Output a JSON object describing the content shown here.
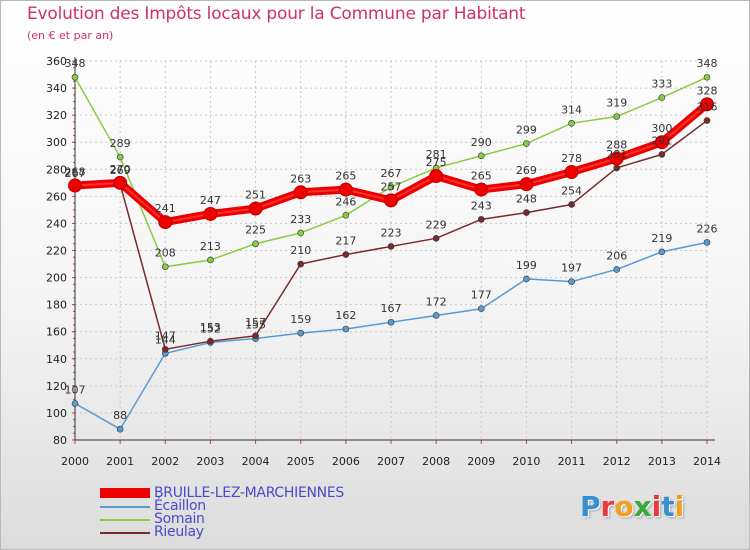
{
  "header": {
    "title": "Evolution des Impôts locaux pour la Commune par Habitant",
    "subtitle": "(en € et par an)"
  },
  "logo": {
    "text": "Proxiti"
  },
  "chart_data": {
    "type": "line",
    "title": "Evolution des Impôts locaux pour la Commune par Habitant",
    "subtitle": "(en € et par an)",
    "xlabel": "",
    "ylabel": "",
    "x": [
      2000,
      2001,
      2002,
      2003,
      2004,
      2005,
      2006,
      2007,
      2008,
      2009,
      2010,
      2011,
      2012,
      2013,
      2014
    ],
    "ylim": [
      80,
      360
    ],
    "yticks": [
      80,
      100,
      120,
      140,
      160,
      180,
      200,
      220,
      240,
      260,
      280,
      300,
      320,
      340,
      360
    ],
    "grid": true,
    "legend": "bottom-left",
    "series": [
      {
        "name": "BRUILLE-LEZ-MARCHIENNES",
        "color": "#ee0000",
        "values": [
          268,
          270,
          241,
          247,
          251,
          263,
          265,
          257,
          275,
          265,
          269,
          278,
          288,
          300,
          328
        ],
        "labels": [
          "268",
          "270",
          "241",
          "247",
          "251",
          "263",
          "265",
          "257",
          "275",
          "265",
          "269",
          "278",
          "288",
          "300",
          "328"
        ],
        "bold": true
      },
      {
        "name": "Écaillon",
        "color": "#5a9ad2",
        "values": [
          107,
          88,
          144,
          152,
          155,
          159,
          162,
          167,
          172,
          177,
          199,
          197,
          206,
          219,
          226
        ],
        "labels": [
          "107",
          "88",
          "144",
          "152",
          "155",
          "159",
          "162",
          "167",
          "172",
          "177",
          "199",
          "197",
          "206",
          "219",
          "226"
        ]
      },
      {
        "name": "Somain",
        "color": "#88cc44",
        "values": [
          348,
          289,
          208,
          213,
          225,
          233,
          246,
          267,
          281,
          290,
          299,
          314,
          319,
          333,
          348
        ],
        "labels": [
          "348",
          "289",
          "208",
          "213",
          "225",
          "233",
          "246",
          "267",
          "281",
          "290",
          "299",
          "314",
          "319",
          "333",
          "348"
        ]
      },
      {
        "name": "Rieulay",
        "color": "#7a2a2a",
        "values": [
          267,
          269,
          147,
          153,
          157,
          210,
          217,
          223,
          229,
          243,
          248,
          254,
          281,
          291,
          316
        ],
        "labels": [
          "267",
          "269",
          "147",
          "153",
          "157",
          "210",
          "217",
          "223",
          "229",
          "243",
          "248",
          "254",
          "281",
          "291",
          "316"
        ]
      }
    ]
  }
}
